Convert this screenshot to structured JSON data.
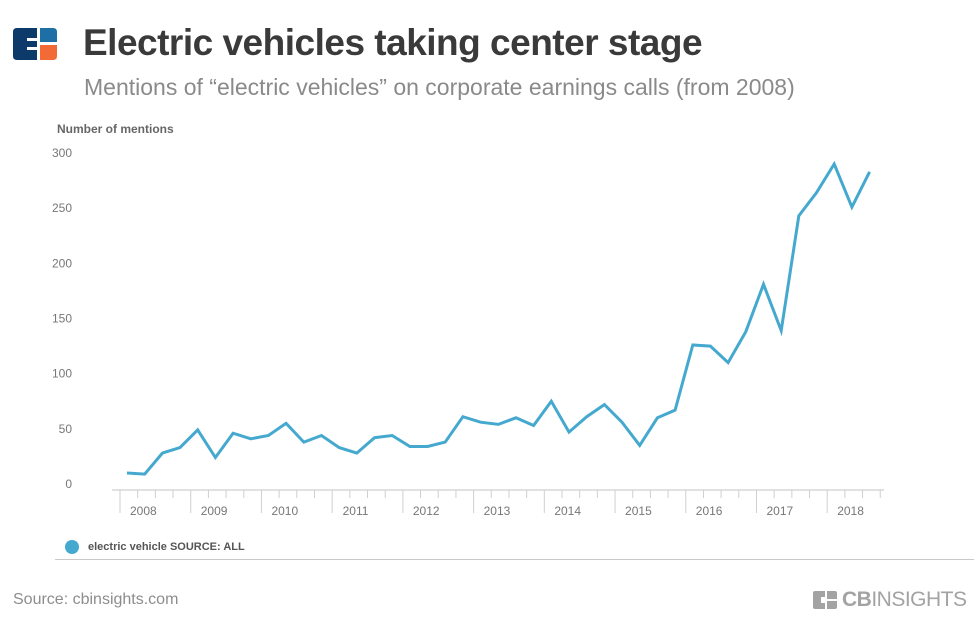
{
  "header": {
    "title": "Electric vehicles taking center stage",
    "subtitle": "Mentions of “electric vehicles” on corporate earnings calls (from 2008)"
  },
  "legend": {
    "label": "electric vehicle SOURCE: ALL",
    "color": "#45a9cf"
  },
  "footer": {
    "source": "Source: cbinsights.com",
    "brand_bold": "CB",
    "brand_light": "INSIGHTS"
  },
  "logo_colors": {
    "navy": "#0b3a6b",
    "blue": "#1d6fa5",
    "orange": "#f26b36"
  },
  "chart_data": {
    "type": "line",
    "title": "Electric vehicles taking center stage",
    "subtitle": "Mentions of “electric vehicles” on corporate earnings calls (from 2008)",
    "xlabel": "",
    "ylabel": "Number of mentions",
    "ylim": [
      0,
      300
    ],
    "yticks": [
      0,
      50,
      100,
      150,
      200,
      250,
      300
    ],
    "x_tick_labels": [
      "2008",
      "2009",
      "2010",
      "2011",
      "2012",
      "2013",
      "2014",
      "2015",
      "2016",
      "2017",
      "2018"
    ],
    "x_unit": "quarter",
    "x_start": "2008 Q1",
    "grid": false,
    "legend_position": "bottom-left",
    "series": [
      {
        "name": "electric vehicle SOURCE: ALL",
        "color": "#45a9cf",
        "values": [
          10,
          9,
          28,
          33,
          49,
          24,
          46,
          41,
          44,
          55,
          38,
          44,
          33,
          28,
          42,
          44,
          34,
          34,
          38,
          61,
          56,
          54,
          60,
          53,
          75,
          47,
          61,
          72,
          56,
          35,
          60,
          67,
          126,
          125,
          110,
          138,
          181,
          139,
          243,
          264,
          290,
          251,
          283
        ]
      }
    ]
  }
}
